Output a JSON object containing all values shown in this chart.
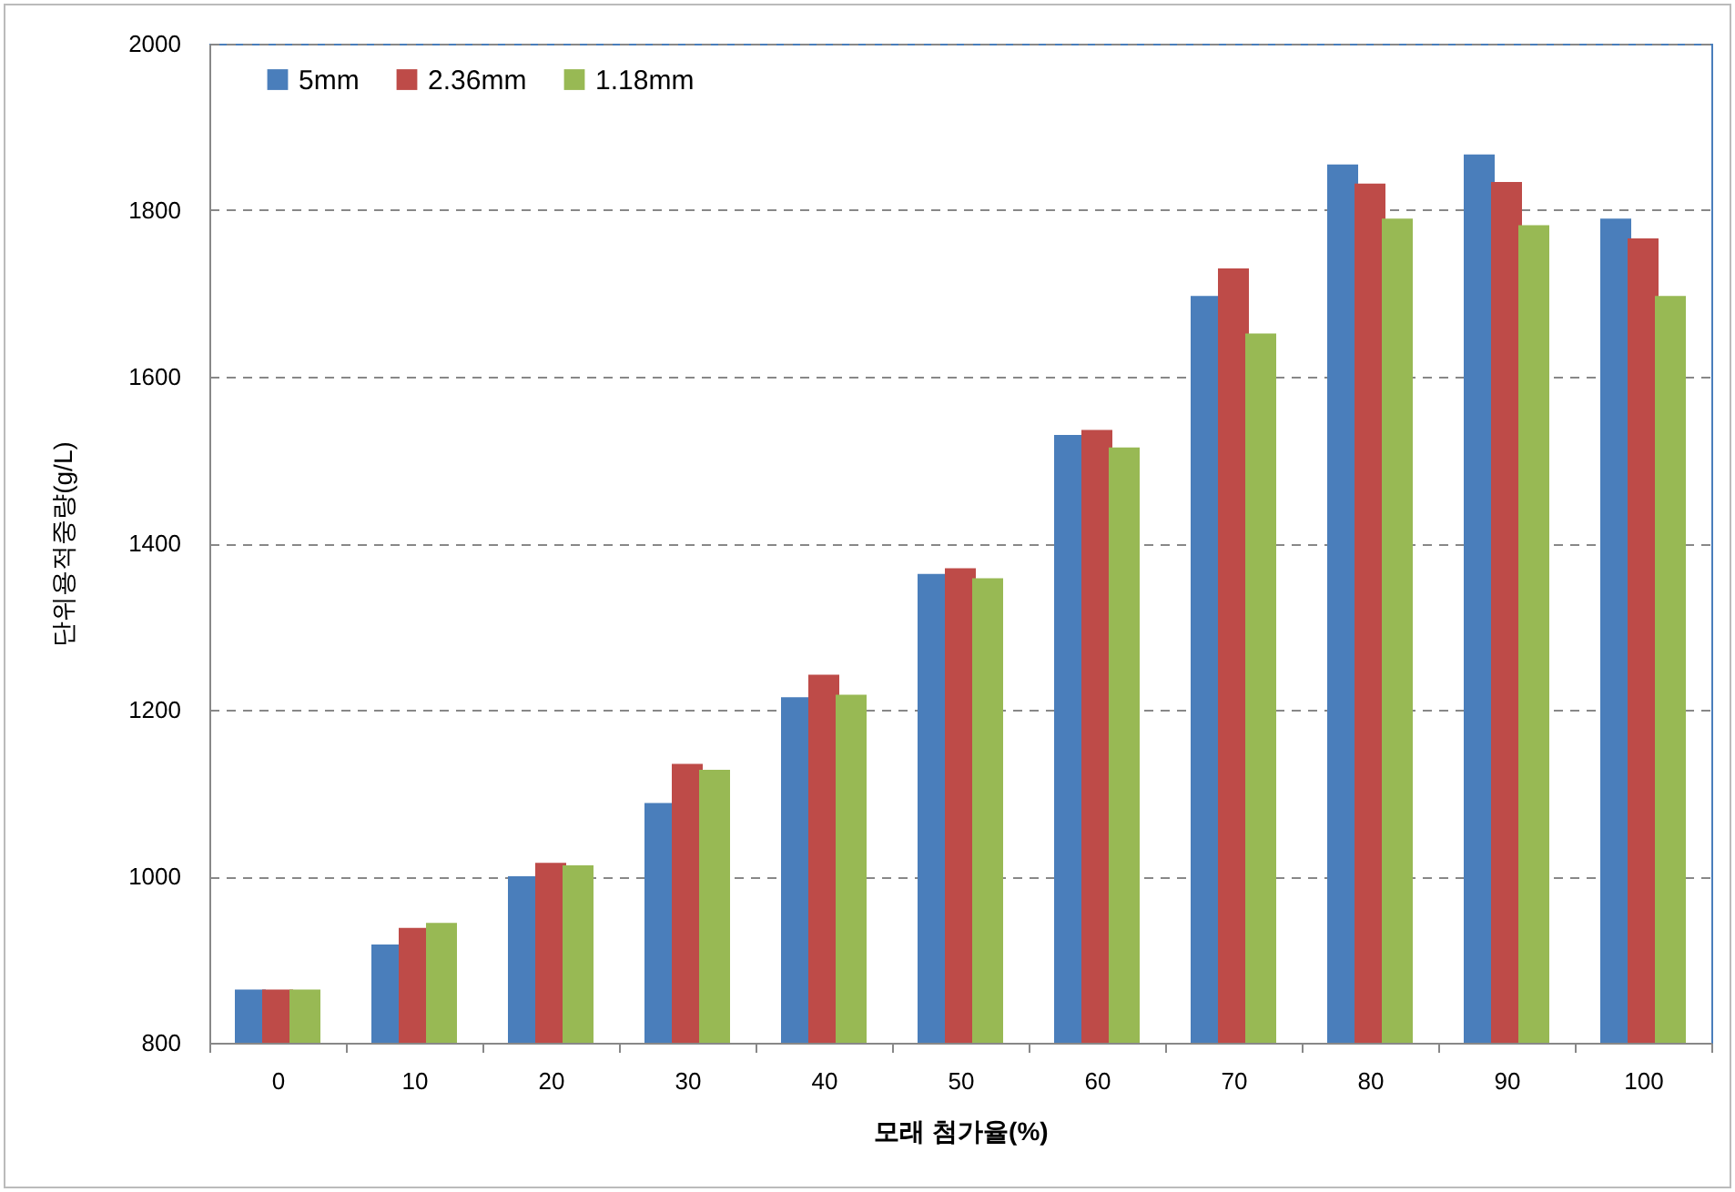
{
  "chart_data": {
    "type": "bar",
    "xlabel": "모래 첨가율(%)",
    "ylabel": "단위용적중량(g/L)",
    "categories": [
      "0",
      "10",
      "20",
      "30",
      "40",
      "50",
      "60",
      "70",
      "80",
      "90",
      "100"
    ],
    "series": [
      {
        "name": "5mm",
        "color": "#4a7ebb",
        "values": [
          864,
          918,
          1000,
          1088,
          1215,
          1363,
          1530,
          1697,
          1855,
          1867,
          1790
        ]
      },
      {
        "name": "2.36mm",
        "color": "#be4b48",
        "values": [
          864,
          938,
          1016,
          1135,
          1242,
          1370,
          1536,
          1730,
          1832,
          1834,
          1766
        ]
      },
      {
        "name": "1.18mm",
        "color": "#98b954",
        "values": [
          864,
          944,
          1013,
          1128,
          1218,
          1358,
          1515,
          1652,
          1790,
          1782,
          1697
        ]
      }
    ],
    "ylim": [
      800,
      2000
    ],
    "yticks": [
      800,
      1000,
      1200,
      1400,
      1600,
      1800,
      2000
    ],
    "grid": "y",
    "legend": "top left"
  }
}
